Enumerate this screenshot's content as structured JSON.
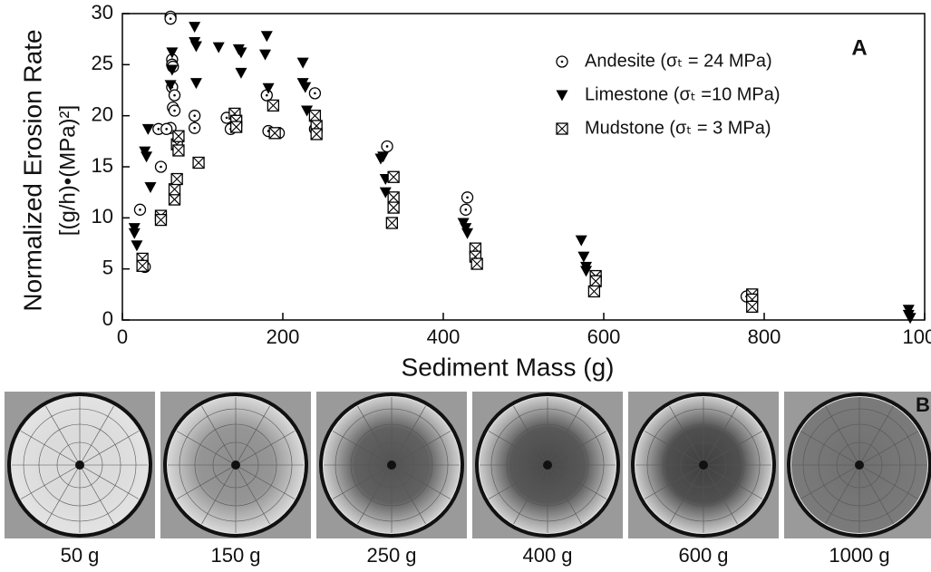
{
  "chart_data": {
    "type": "scatter",
    "panel_label": "A",
    "xlabel": "Sediment Mass (g)",
    "ylabel": [
      "Normalized Erosion Rate",
      "[(g/h)•(MPa)²]"
    ],
    "xlim": [
      0,
      1000
    ],
    "xticks": [
      0,
      200,
      400,
      600,
      800,
      1000
    ],
    "ylim": [
      0,
      30
    ],
    "yticks": [
      0,
      5,
      10,
      15,
      20,
      25,
      30
    ],
    "series": [
      {
        "name": "Andesite (σₜ = 24 MPa)",
        "marker": "circle",
        "color": "#000000",
        "x": [
          60,
          60,
          62,
          62,
          63,
          62,
          65,
          63,
          65,
          60,
          45,
          55,
          48,
          22,
          28,
          90,
          90,
          130,
          135,
          180,
          182,
          195,
          240,
          240,
          330,
          430,
          428,
          778
        ],
        "y": [
          29.7,
          29.5,
          25.5,
          25,
          24.8,
          22.8,
          22,
          20.8,
          20.5,
          18.8,
          18.7,
          18.7,
          15,
          10.8,
          5.2,
          20,
          18.8,
          19.8,
          18.7,
          22,
          18.5,
          18.3,
          22.2,
          18.7,
          17,
          12,
          10.8,
          2.3
        ]
      },
      {
        "name": "Limestone (σₜ =10 MPa)",
        "marker": "triangle",
        "color": "#000000",
        "x": [
          15,
          15,
          18,
          28,
          30,
          32,
          35,
          62,
          62,
          60,
          90,
          90,
          92,
          92,
          120,
          145,
          148,
          148,
          180,
          178,
          182,
          225,
          225,
          228,
          230,
          322,
          325,
          328,
          328,
          425,
          428,
          430,
          572,
          575,
          578,
          578,
          980,
          980,
          982
        ],
        "y": [
          9,
          8.5,
          7.3,
          16.5,
          16,
          18.7,
          13,
          26.2,
          24.5,
          23,
          28.7,
          27.2,
          26.8,
          23.2,
          26.7,
          26.5,
          26.2,
          24.2,
          27.8,
          26,
          22.7,
          25.2,
          23.2,
          22.8,
          20.5,
          15.8,
          16,
          13.8,
          12.5,
          9.5,
          9,
          8.5,
          7.8,
          6.2,
          5.2,
          4.8,
          1,
          0.5,
          0.2
        ]
      },
      {
        "name": "Mudstone (σₜ = 3 MPa)",
        "marker": "boxx",
        "color": "#000000",
        "x": [
          25,
          25,
          48,
          48,
          65,
          65,
          68,
          68,
          70,
          70,
          95,
          140,
          142,
          142,
          188,
          190,
          240,
          242,
          242,
          338,
          338,
          338,
          336,
          440,
          440,
          442,
          590,
          590,
          588,
          785,
          785,
          785
        ],
        "y": [
          6,
          5.3,
          10.2,
          9.8,
          11.8,
          12.8,
          13.8,
          17.2,
          16.6,
          18,
          15.4,
          20.2,
          19.5,
          18.9,
          21,
          18.3,
          20,
          19,
          18.2,
          14,
          12,
          11,
          9.5,
          7,
          6.2,
          5.5,
          4.3,
          3.8,
          2.8,
          2.5,
          2,
          1.3
        ]
      }
    ]
  },
  "panel_b": {
    "label": "B",
    "captions": [
      "50 g",
      "150 g",
      "250 g",
      "400 g",
      "600 g",
      "1000 g"
    ]
  }
}
